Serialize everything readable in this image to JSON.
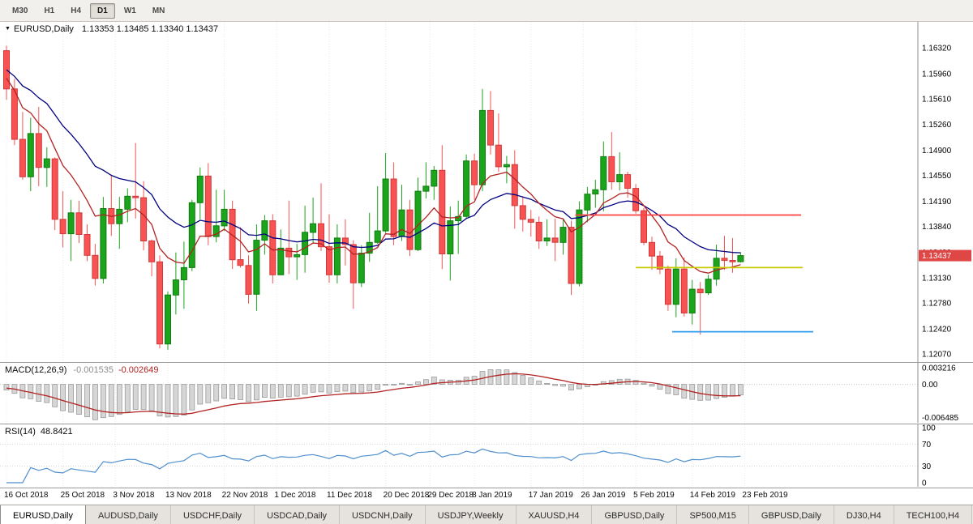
{
  "toolbar": {
    "timeframes": [
      "M30",
      "H1",
      "H4",
      "D1",
      "W1",
      "MN"
    ],
    "active_timeframe": "D1"
  },
  "chart": {
    "symbol_title": "EURUSD,Daily",
    "ohlc_text": "1.13353 1.13485 1.13340 1.13437"
  },
  "chart_data": {
    "type": "candlestick",
    "symbol": "EURUSD",
    "timeframe": "Daily",
    "current_bar": {
      "open": "1.13353",
      "high": "1.13485",
      "low": "1.13340",
      "close": "1.13437"
    },
    "price_axis": {
      "ticks": [
        "1.16320",
        "1.15960",
        "1.15610",
        "1.15260",
        "1.14900",
        "1.14550",
        "1.14190",
        "1.13840",
        "1.13480",
        "1.13130",
        "1.12780",
        "1.12420",
        "1.12070"
      ],
      "top": 1.1668,
      "bottom": 1.1196,
      "marker": {
        "text": "1.13437",
        "bg": "#df4646",
        "fg": "#ffffff"
      }
    },
    "date_axis": {
      "labels": [
        {
          "text": "16 Oct 2018",
          "bar": 0
        },
        {
          "text": "25 Oct 2018",
          "bar": 7
        },
        {
          "text": "3 Nov 2018",
          "bar": 13.5
        },
        {
          "text": "13 Nov 2018",
          "bar": 20
        },
        {
          "text": "22 Nov 2018",
          "bar": 27
        },
        {
          "text": "1 Dec 2018",
          "bar": 33.5
        },
        {
          "text": "11 Dec 2018",
          "bar": 40
        },
        {
          "text": "20 Dec 2018",
          "bar": 47
        },
        {
          "text": "29 Dec 2018",
          "bar": 52.5
        },
        {
          "text": "8 Jan 2019",
          "bar": 58
        },
        {
          "text": "17 Jan 2019",
          "bar": 65
        },
        {
          "text": "26 Jan 2019",
          "bar": 71.5
        },
        {
          "text": "5 Feb 2019",
          "bar": 78
        },
        {
          "text": "14 Feb 2019",
          "bar": 85
        },
        {
          "text": "23 Feb 2019",
          "bar": 91.5
        }
      ]
    },
    "candles": {
      "up_color": "#1ca41c",
      "up_border": "#0e7d0e",
      "down_color": "#f95252",
      "down_border": "#cf3a3a",
      "ohlc": [
        [
          1.1628,
          1.1635,
          1.156,
          1.1575
        ],
        [
          1.1575,
          1.1589,
          1.1497,
          1.1505
        ],
        [
          1.1505,
          1.1543,
          1.1449,
          1.1453
        ],
        [
          1.1453,
          1.1535,
          1.1433,
          1.1513
        ],
        [
          1.1513,
          1.155,
          1.144,
          1.1466
        ],
        [
          1.1466,
          1.1494,
          1.1439,
          1.1478
        ],
        [
          1.1478,
          1.148,
          1.1379,
          1.1394
        ],
        [
          1.1394,
          1.1433,
          1.1355,
          1.1374
        ],
        [
          1.1374,
          1.1421,
          1.1336,
          1.1403
        ],
        [
          1.1403,
          1.142,
          1.1361,
          1.1373
        ],
        [
          1.1373,
          1.1387,
          1.1336,
          1.1344
        ],
        [
          1.1344,
          1.136,
          1.1302,
          1.1312
        ],
        [
          1.1312,
          1.1425,
          1.1305,
          1.1409
        ],
        [
          1.1409,
          1.1456,
          1.1371,
          1.1388
        ],
        [
          1.1388,
          1.1425,
          1.1353,
          1.1408
        ],
        [
          1.1408,
          1.1437,
          1.139,
          1.1426
        ],
        [
          1.1426,
          1.15,
          1.1395,
          1.1424
        ],
        [
          1.1424,
          1.1447,
          1.1351,
          1.1364
        ],
        [
          1.1364,
          1.1366,
          1.1315,
          1.1335
        ],
        [
          1.1335,
          1.1344,
          1.1215,
          1.1221
        ],
        [
          1.1221,
          1.1294,
          1.1213,
          1.1289
        ],
        [
          1.1289,
          1.1348,
          1.1262,
          1.131
        ],
        [
          1.131,
          1.1363,
          1.127,
          1.1327
        ],
        [
          1.1327,
          1.1421,
          1.1322,
          1.1417
        ],
        [
          1.1417,
          1.1466,
          1.1394,
          1.1454
        ],
        [
          1.1454,
          1.1472,
          1.1358,
          1.137
        ],
        [
          1.137,
          1.1435,
          1.1362,
          1.1385
        ],
        [
          1.1385,
          1.1435,
          1.1378,
          1.1408
        ],
        [
          1.1408,
          1.142,
          1.1325,
          1.1338
        ],
        [
          1.1338,
          1.1383,
          1.1327,
          1.133
        ],
        [
          1.133,
          1.1344,
          1.1277,
          1.129
        ],
        [
          1.129,
          1.1387,
          1.1267,
          1.1365
        ],
        [
          1.1365,
          1.14,
          1.1345,
          1.1392
        ],
        [
          1.1392,
          1.1401,
          1.1305,
          1.1317
        ],
        [
          1.1317,
          1.138,
          1.1317,
          1.1354
        ],
        [
          1.1354,
          1.142,
          1.1318,
          1.1342
        ],
        [
          1.1342,
          1.136,
          1.131,
          1.1345
        ],
        [
          1.1345,
          1.1413,
          1.132,
          1.1376
        ],
        [
          1.1376,
          1.1424,
          1.1361,
          1.1388
        ],
        [
          1.1388,
          1.1444,
          1.135,
          1.1356
        ],
        [
          1.1356,
          1.1401,
          1.1306,
          1.1317
        ],
        [
          1.1317,
          1.1387,
          1.1305,
          1.1368
        ],
        [
          1.1368,
          1.1394,
          1.133,
          1.1359
        ],
        [
          1.1359,
          1.1365,
          1.127,
          1.1306
        ],
        [
          1.1306,
          1.1358,
          1.13,
          1.1347
        ],
        [
          1.1347,
          1.1403,
          1.1335,
          1.1362
        ],
        [
          1.1362,
          1.144,
          1.136,
          1.1378
        ],
        [
          1.1378,
          1.1486,
          1.1375,
          1.145
        ],
        [
          1.145,
          1.1473,
          1.1358,
          1.137
        ],
        [
          1.137,
          1.1442,
          1.1364,
          1.1407
        ],
        [
          1.1407,
          1.1421,
          1.1343,
          1.1352
        ],
        [
          1.1352,
          1.1452,
          1.135,
          1.1433
        ],
        [
          1.1433,
          1.1473,
          1.1423,
          1.144
        ],
        [
          1.144,
          1.1468,
          1.1421,
          1.1462
        ],
        [
          1.1462,
          1.1497,
          1.1325,
          1.1346
        ],
        [
          1.1346,
          1.1412,
          1.1309,
          1.1392
        ],
        [
          1.1392,
          1.142,
          1.1346,
          1.1398
        ],
        [
          1.1398,
          1.1484,
          1.1395,
          1.1475
        ],
        [
          1.1475,
          1.1485,
          1.1421,
          1.1442
        ],
        [
          1.1442,
          1.1575,
          1.1433,
          1.1545
        ],
        [
          1.1545,
          1.1572,
          1.1484,
          1.1497
        ],
        [
          1.1497,
          1.1541,
          1.146,
          1.1467
        ],
        [
          1.1467,
          1.1482,
          1.1444,
          1.147
        ],
        [
          1.147,
          1.149,
          1.1381,
          1.1413
        ],
        [
          1.1413,
          1.1426,
          1.1377,
          1.1394
        ],
        [
          1.1394,
          1.1407,
          1.137,
          1.139
        ],
        [
          1.139,
          1.1398,
          1.1353,
          1.1364
        ],
        [
          1.1364,
          1.1394,
          1.1357,
          1.1368
        ],
        [
          1.1368,
          1.1395,
          1.1336,
          1.1362
        ],
        [
          1.1362,
          1.1394,
          1.1345,
          1.1383
        ],
        [
          1.1383,
          1.1392,
          1.1289,
          1.1305
        ],
        [
          1.1305,
          1.1419,
          1.1301,
          1.1407
        ],
        [
          1.1407,
          1.1439,
          1.139,
          1.1429
        ],
        [
          1.1429,
          1.1449,
          1.141,
          1.1435
        ],
        [
          1.1435,
          1.1502,
          1.1405,
          1.1481
        ],
        [
          1.1481,
          1.1515,
          1.1435,
          1.1446
        ],
        [
          1.1446,
          1.1487,
          1.1434,
          1.1456
        ],
        [
          1.1456,
          1.146,
          1.1424,
          1.1437
        ],
        [
          1.1437,
          1.1443,
          1.1402,
          1.1406
        ],
        [
          1.1406,
          1.141,
          1.1358,
          1.1362
        ],
        [
          1.1362,
          1.137,
          1.1324,
          1.1343
        ],
        [
          1.1343,
          1.135,
          1.1318,
          1.1325
        ],
        [
          1.1325,
          1.133,
          1.1267,
          1.1276
        ],
        [
          1.1276,
          1.134,
          1.1258,
          1.1325
        ],
        [
          1.1325,
          1.1341,
          1.1259,
          1.1264
        ],
        [
          1.1264,
          1.131,
          1.1248,
          1.1297
        ],
        [
          1.1297,
          1.1307,
          1.1234,
          1.1292
        ],
        [
          1.1292,
          1.1317,
          1.1289,
          1.1311
        ],
        [
          1.1311,
          1.1359,
          1.1302,
          1.134
        ],
        [
          1.134,
          1.1371,
          1.1324,
          1.1337
        ],
        [
          1.1337,
          1.1368,
          1.132,
          1.1335
        ],
        [
          1.13353,
          1.13485,
          1.1334,
          1.13437
        ]
      ]
    },
    "overlays": {
      "ma_slow": {
        "period": 20,
        "color": "#000080"
      },
      "ma_fast": {
        "period": 9,
        "color": "#b22222"
      },
      "trend_lines": [
        {
          "name": "resistance-red",
          "price": 1.14,
          "from_bar": 70.5,
          "to_bar": 98.5,
          "color": "#ff4040"
        },
        {
          "name": "support-yellow",
          "price": 1.1327,
          "from_bar": 78,
          "to_bar": 98.7,
          "color": "#c9c900"
        },
        {
          "name": "support-blue",
          "price": 1.1238,
          "from_bar": 82.5,
          "to_bar": 100,
          "color": "#2f9bec"
        }
      ]
    },
    "macd": {
      "label": "MACD(12,26,9)",
      "value_main": "-0.001535",
      "value_signal": "-0.002649",
      "fast": 12,
      "slow": 26,
      "signal_period": 9,
      "axis_ticks": [
        "0.003216",
        "0.00",
        "-0.006485"
      ],
      "range": {
        "top": 0.0042,
        "bottom": -0.0075
      },
      "hist_fill": "#d6d6d6",
      "hist_stroke": "#9a9a9a",
      "signal_color": "#b22222"
    },
    "rsi": {
      "label": "RSI(14)",
      "value": "48.8421",
      "period": 14,
      "axis_ticks": [
        "100",
        "70",
        "30",
        "0"
      ],
      "levels": [
        70,
        30
      ],
      "color": "#4f8fce"
    }
  },
  "tabs": [
    "EURUSD,Daily",
    "AUDUSD,Daily",
    "USDCHF,Daily",
    "USDCAD,Daily",
    "USDCNH,Daily",
    "USDJPY,Weekly",
    "XAUUSD,H4",
    "GBPUSD,Daily",
    "SP500,M15",
    "GBPUSD,Daily",
    "DJ30,H4",
    "TECH100,H4"
  ],
  "active_tab": "EURUSD,Daily"
}
